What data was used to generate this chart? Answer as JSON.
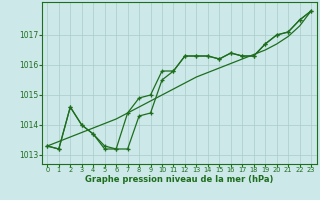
{
  "x": [
    0,
    1,
    2,
    3,
    4,
    5,
    6,
    7,
    8,
    9,
    10,
    11,
    12,
    13,
    14,
    15,
    16,
    17,
    18,
    19,
    20,
    21,
    22,
    23
  ],
  "y_line1": [
    1013.3,
    1013.2,
    1014.6,
    1014.0,
    1013.7,
    1013.3,
    1013.2,
    1014.4,
    1014.9,
    1015.0,
    1015.8,
    1015.8,
    1016.3,
    1016.3,
    1016.3,
    1016.2,
    1016.4,
    1016.3,
    1016.3,
    1016.7,
    1017.0,
    1017.1,
    1017.5,
    1017.8
  ],
  "y_line2": [
    1013.3,
    1013.2,
    1014.6,
    1014.0,
    1013.7,
    1013.2,
    1013.2,
    1013.2,
    1014.3,
    1014.4,
    1015.5,
    1015.8,
    1016.3,
    1016.3,
    1016.3,
    1016.2,
    1016.4,
    1016.3,
    1016.3,
    1016.7,
    1017.0,
    1017.1,
    1017.5,
    1017.8
  ],
  "y_trend": [
    1013.3,
    1013.45,
    1013.6,
    1013.75,
    1013.9,
    1014.05,
    1014.2,
    1014.4,
    1014.6,
    1014.8,
    1015.0,
    1015.2,
    1015.4,
    1015.6,
    1015.75,
    1015.9,
    1016.05,
    1016.2,
    1016.35,
    1016.5,
    1016.7,
    1016.95,
    1017.3,
    1017.8
  ],
  "line_color": "#1e6e1e",
  "bg_color": "#cce8e8",
  "grid_color": "#aacccc",
  "xlabel": "Graphe pression niveau de la mer (hPa)",
  "ylim": [
    1012.7,
    1018.1
  ],
  "xlim": [
    -0.5,
    23.5
  ],
  "yticks": [
    1013,
    1014,
    1015,
    1016,
    1017
  ],
  "xticks": [
    0,
    1,
    2,
    3,
    4,
    5,
    6,
    7,
    8,
    9,
    10,
    11,
    12,
    13,
    14,
    15,
    16,
    17,
    18,
    19,
    20,
    21,
    22,
    23
  ],
  "xlabel_fontsize": 6.0,
  "ytick_fontsize": 5.5,
  "xtick_fontsize": 4.8
}
